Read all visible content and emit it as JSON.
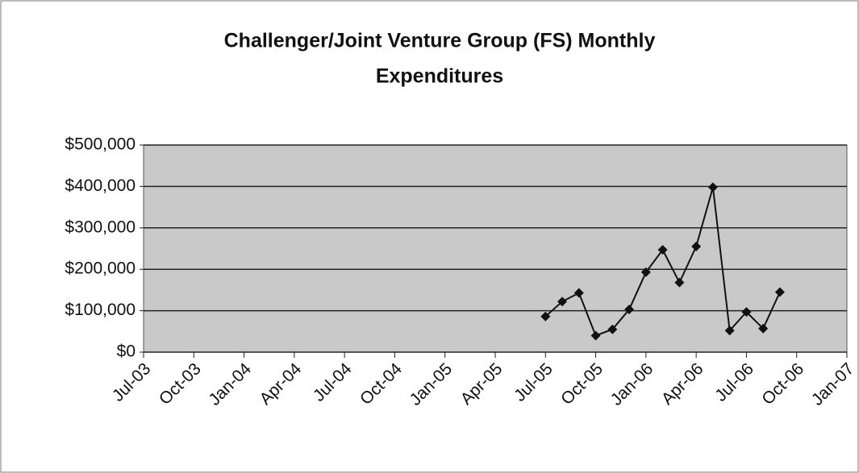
{
  "chart_data": {
    "type": "line",
    "title": [
      "Challenger/Joint Venture Group (FS) Monthly",
      "Expenditures"
    ],
    "x": [
      "2005-07",
      "2005-08",
      "2005-09",
      "2005-10",
      "2005-11",
      "2005-12",
      "2006-01",
      "2006-02",
      "2006-03",
      "2006-04",
      "2006-05",
      "2006-06",
      "2006-07",
      "2006-08",
      "2006-09"
    ],
    "series": [
      {
        "name": null,
        "color": "#111111",
        "values": [
          86000,
          122000,
          143000,
          40000,
          55000,
          103000,
          193000,
          247000,
          168000,
          255000,
          398000,
          52000,
          97000,
          57000,
          145000
        ]
      }
    ],
    "xlim": [
      "2003-07",
      "2007-01"
    ],
    "xticks": [
      {
        "value": "2003-07",
        "label": "Jul-03"
      },
      {
        "value": "2003-10",
        "label": "Oct-03"
      },
      {
        "value": "2004-01",
        "label": "Jan-04"
      },
      {
        "value": "2004-04",
        "label": "Apr-04"
      },
      {
        "value": "2004-07",
        "label": "Jul-04"
      },
      {
        "value": "2004-10",
        "label": "Oct-04"
      },
      {
        "value": "2005-01",
        "label": "Jan-05"
      },
      {
        "value": "2005-04",
        "label": "Apr-05"
      },
      {
        "value": "2005-07",
        "label": "Jul-05"
      },
      {
        "value": "2005-10",
        "label": "Oct-05"
      },
      {
        "value": "2006-01",
        "label": "Jan-06"
      },
      {
        "value": "2006-04",
        "label": "Apr-06"
      },
      {
        "value": "2006-07",
        "label": "Jul-06"
      },
      {
        "value": "2006-10",
        "label": "Oct-06"
      },
      {
        "value": "2007-01",
        "label": "Jan-07"
      }
    ],
    "ylim": [
      0,
      500000
    ],
    "yticks": [
      {
        "value": 0,
        "label": "$0"
      },
      {
        "value": 100000,
        "label": "$100,000"
      },
      {
        "value": 200000,
        "label": "$200,000"
      },
      {
        "value": 300000,
        "label": "$300,000"
      },
      {
        "value": 400000,
        "label": "$400,000"
      },
      {
        "value": 500000,
        "label": "$500,000"
      }
    ],
    "grid": true
  }
}
